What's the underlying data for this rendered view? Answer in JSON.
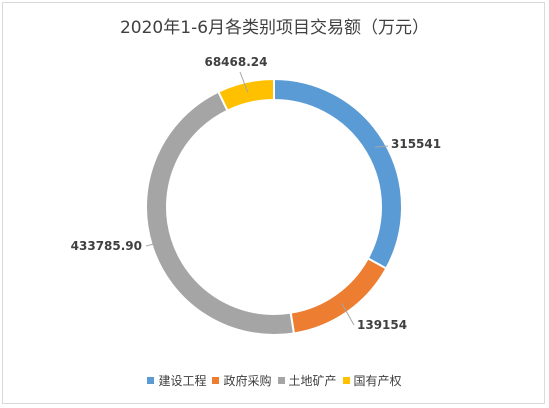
{
  "chart_data": {
    "type": "pie",
    "subtype": "donut",
    "title": "2020年1-6月各类别项目交易额（万元）",
    "categories": [
      "建设工程",
      "政府采购",
      "土地矿产",
      "国有产权"
    ],
    "values": [
      315541,
      139154,
      433785.9,
      68468.24
    ],
    "value_labels": [
      "315541",
      "139154",
      "433785.90",
      "68468.24"
    ],
    "colors": [
      "#5b9bd5",
      "#ed7d31",
      "#a5a5a5",
      "#ffc000"
    ],
    "legend_position": "bottom"
  }
}
